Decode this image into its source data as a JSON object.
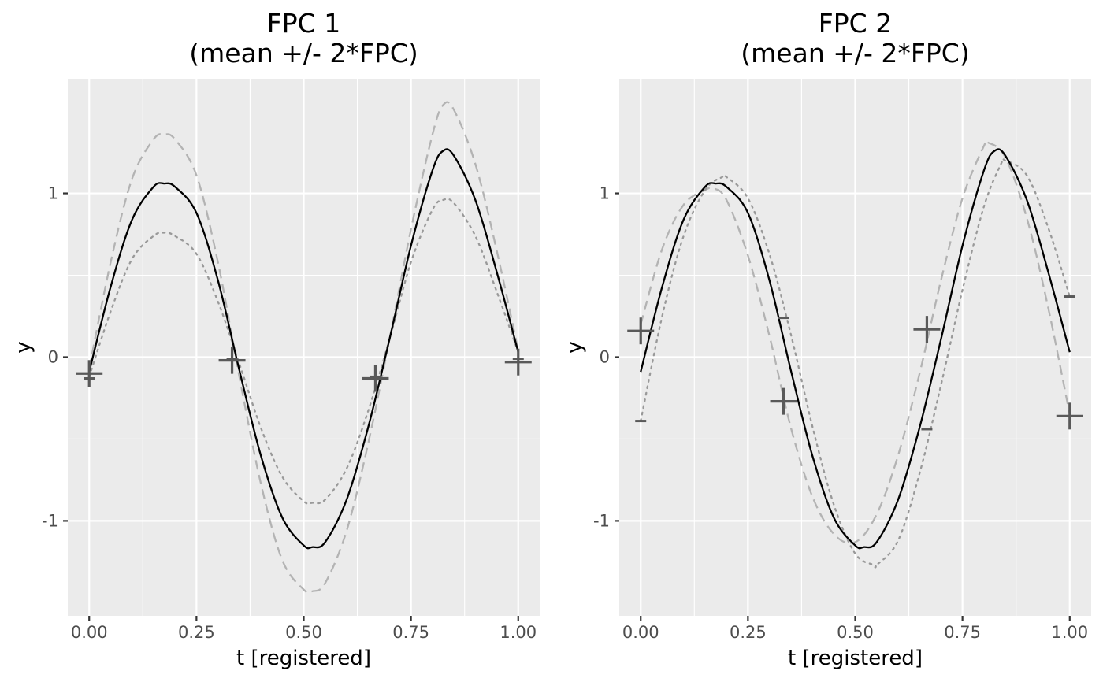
{
  "chart_data": [
    {
      "type": "line",
      "title_line1": "FPC 1",
      "title_line2": "(mean +/- 2*FPC)",
      "xlabel": "t [registered]",
      "ylabel": "y",
      "xlim": [
        -0.05,
        1.05
      ],
      "ylim": [
        -1.58,
        1.7
      ],
      "x_ticks": [
        0,
        0.25,
        0.5,
        0.75,
        1
      ],
      "x_tick_labels": [
        "0.00",
        "0.25",
        "0.50",
        "0.75",
        "1.00"
      ],
      "y_ticks": [
        -1,
        0,
        1
      ],
      "y_tick_labels": [
        "-1",
        "0",
        "1"
      ],
      "grid": true,
      "series": [
        {
          "role": "mean",
          "style": "solid",
          "color": "#000000",
          "x": [
            0,
            0.05,
            0.1,
            0.15,
            0.175,
            0.2,
            0.25,
            0.3,
            0.35,
            0.4,
            0.45,
            0.5,
            0.52,
            0.55,
            0.6,
            0.65,
            0.7,
            0.75,
            0.8,
            0.825,
            0.85,
            0.9,
            0.95,
            1
          ],
          "y": [
            -0.09,
            0.43,
            0.84,
            1.04,
            1.06,
            1.04,
            0.88,
            0.47,
            -0.08,
            -0.6,
            -0.98,
            -1.15,
            -1.16,
            -1.13,
            -0.87,
            -0.43,
            0.11,
            0.68,
            1.14,
            1.26,
            1.23,
            0.96,
            0.52,
            0.03
          ]
        },
        {
          "role": "mean + 2*FPC",
          "style": "dashed",
          "color": "#b3b3b3",
          "x": [
            0,
            0.05,
            0.1,
            0.15,
            0.175,
            0.2,
            0.25,
            0.3,
            0.35,
            0.4,
            0.45,
            0.5,
            0.52,
            0.55,
            0.6,
            0.65,
            0.7,
            0.75,
            0.8,
            0.825,
            0.85,
            0.9,
            0.95,
            1
          ],
          "y": [
            -0.07,
            0.58,
            1.09,
            1.33,
            1.36,
            1.33,
            1.11,
            0.58,
            -0.12,
            -0.77,
            -1.24,
            -1.42,
            -1.43,
            -1.38,
            -1.06,
            -0.53,
            0.11,
            0.78,
            1.36,
            1.54,
            1.51,
            1.18,
            0.65,
            0.04
          ]
        },
        {
          "role": "mean - 2*FPC",
          "style": "dotted",
          "color": "#999999",
          "x": [
            0,
            0.05,
            0.1,
            0.15,
            0.175,
            0.2,
            0.25,
            0.3,
            0.35,
            0.4,
            0.45,
            0.5,
            0.52,
            0.55,
            0.6,
            0.65,
            0.7,
            0.75,
            0.8,
            0.825,
            0.85,
            0.9,
            0.95,
            1
          ],
          "y": [
            -0.12,
            0.28,
            0.6,
            0.74,
            0.76,
            0.74,
            0.63,
            0.34,
            -0.04,
            -0.43,
            -0.73,
            -0.88,
            -0.89,
            -0.87,
            -0.68,
            -0.33,
            0.11,
            0.58,
            0.9,
            0.96,
            0.94,
            0.74,
            0.4,
            0.03
          ]
        }
      ],
      "markers": {
        "color": "#595959",
        "plus": [
          [
            0,
            -0.1
          ],
          [
            0.333,
            -0.02
          ],
          [
            0.667,
            -0.13
          ],
          [
            1,
            -0.03
          ]
        ],
        "minus": [
          [
            0,
            -0.13
          ],
          [
            0.333,
            -0.01
          ],
          [
            0.667,
            -0.12
          ],
          [
            1,
            -0.01
          ]
        ]
      }
    },
    {
      "type": "line",
      "title_line1": "FPC 2",
      "title_line2": "(mean +/- 2*FPC)",
      "xlabel": "t [registered]",
      "ylabel": "y",
      "xlim": [
        -0.05,
        1.05
      ],
      "ylim": [
        -1.58,
        1.7
      ],
      "x_ticks": [
        0,
        0.25,
        0.5,
        0.75,
        1
      ],
      "x_tick_labels": [
        "0.00",
        "0.25",
        "0.50",
        "0.75",
        "1.00"
      ],
      "y_ticks": [
        -1,
        0,
        1
      ],
      "y_tick_labels": [
        "-1",
        "0",
        "1"
      ],
      "grid": true,
      "series": [
        {
          "role": "mean",
          "style": "solid",
          "color": "#000000",
          "x": [
            0,
            0.05,
            0.1,
            0.15,
            0.175,
            0.2,
            0.25,
            0.3,
            0.35,
            0.4,
            0.45,
            0.5,
            0.52,
            0.55,
            0.6,
            0.65,
            0.7,
            0.75,
            0.8,
            0.825,
            0.85,
            0.9,
            0.95,
            1
          ],
          "y": [
            -0.09,
            0.43,
            0.84,
            1.04,
            1.06,
            1.04,
            0.88,
            0.47,
            -0.08,
            -0.6,
            -0.98,
            -1.15,
            -1.16,
            -1.13,
            -0.87,
            -0.43,
            0.11,
            0.68,
            1.14,
            1.26,
            1.23,
            0.96,
            0.52,
            0.03
          ]
        },
        {
          "role": "mean + 2*FPC",
          "style": "dashed",
          "color": "#b3b3b3",
          "x": [
            0,
            0.05,
            0.1,
            0.15,
            0.17,
            0.2,
            0.25,
            0.3,
            0.35,
            0.4,
            0.45,
            0.5,
            0.55,
            0.6,
            0.65,
            0.7,
            0.75,
            0.8,
            0.81,
            0.85,
            0.9,
            0.95,
            1
          ],
          "y": [
            0.2,
            0.66,
            0.93,
            1.02,
            1.03,
            0.96,
            0.62,
            0.13,
            -0.43,
            -0.85,
            -1.08,
            -1.13,
            -0.96,
            -0.6,
            -0.1,
            0.47,
            0.97,
            1.29,
            1.31,
            1.22,
            0.85,
            0.3,
            -0.35
          ]
        },
        {
          "role": "mean - 2*FPC",
          "style": "dotted",
          "color": "#999999",
          "x": [
            0,
            0.05,
            0.1,
            0.15,
            0.19,
            0.2,
            0.25,
            0.3,
            0.35,
            0.4,
            0.45,
            0.5,
            0.545,
            0.55,
            0.6,
            0.65,
            0.7,
            0.75,
            0.8,
            0.84,
            0.85,
            0.9,
            0.95,
            1
          ],
          "y": [
            -0.39,
            0.25,
            0.74,
            1.02,
            1.1,
            1.1,
            0.97,
            0.63,
            0.14,
            -0.42,
            -0.9,
            -1.2,
            -1.27,
            -1.27,
            -1.12,
            -0.71,
            -0.17,
            0.41,
            0.92,
            1.18,
            1.2,
            1.11,
            0.79,
            0.37
          ]
        }
      ],
      "markers": {
        "color": "#595959",
        "plus": [
          [
            0,
            0.16
          ],
          [
            0.333,
            -0.27
          ],
          [
            0.667,
            0.17
          ],
          [
            1,
            -0.36
          ]
        ],
        "minus": [
          [
            0,
            -0.39
          ],
          [
            0.333,
            0.24
          ],
          [
            0.667,
            -0.44
          ],
          [
            1,
            0.37
          ]
        ]
      }
    }
  ]
}
